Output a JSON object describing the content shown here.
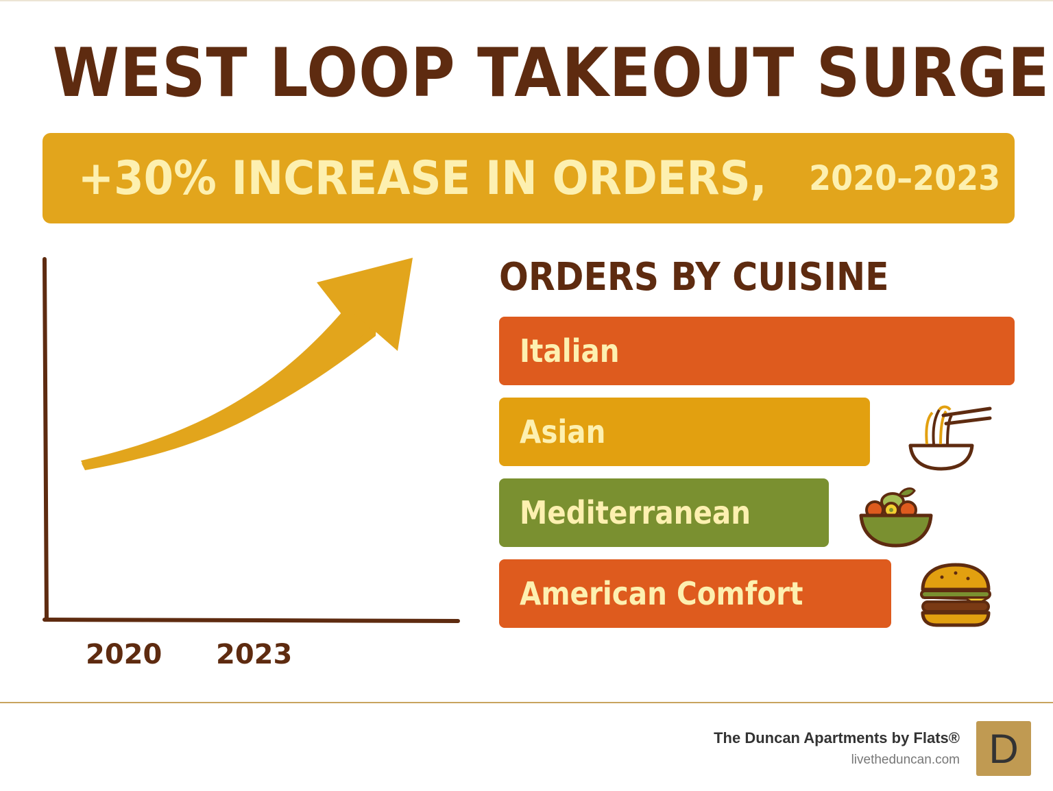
{
  "header": {
    "title": "WEST LOOP TAKEOUT SURGE",
    "banner_main": "+30% INCREASE IN ORDERS,",
    "banner_years": "2020–2023"
  },
  "colors": {
    "title": "#5e2b10",
    "banner": "#e2a51c",
    "banner_text": "#fdf0b0",
    "arrow": "#e2a51c",
    "axis": "#5e2b10",
    "italian": "#de5b1e",
    "asian": "#e2a010",
    "mediterranean": "#7a9030",
    "american_comfort": "#de5b1e",
    "logo_bg": "#c09a52"
  },
  "chart_data": [
    {
      "type": "line",
      "title": "",
      "x_tick_labels": [
        "2020",
        "2023"
      ],
      "trend": "increasing",
      "annotation": "+30% INCREASE IN ORDERS, 2020–2023"
    },
    {
      "type": "bar",
      "orientation": "horizontal",
      "title": "ORDERS BY CUISINE",
      "categories": [
        "Italian",
        "Asian",
        "Mediterranean",
        "American Comfort"
      ],
      "values": [
        100,
        72,
        64,
        76
      ],
      "value_scale": "relative (no axis shown)",
      "icons": [
        "",
        "noodle-bowl-icon",
        "salad-bowl-icon",
        "burger-icon"
      ]
    }
  ],
  "footer": {
    "brand": "The Duncan Apartments by Flats®",
    "url": "livetheduncan.com",
    "logo_letter": "D"
  }
}
